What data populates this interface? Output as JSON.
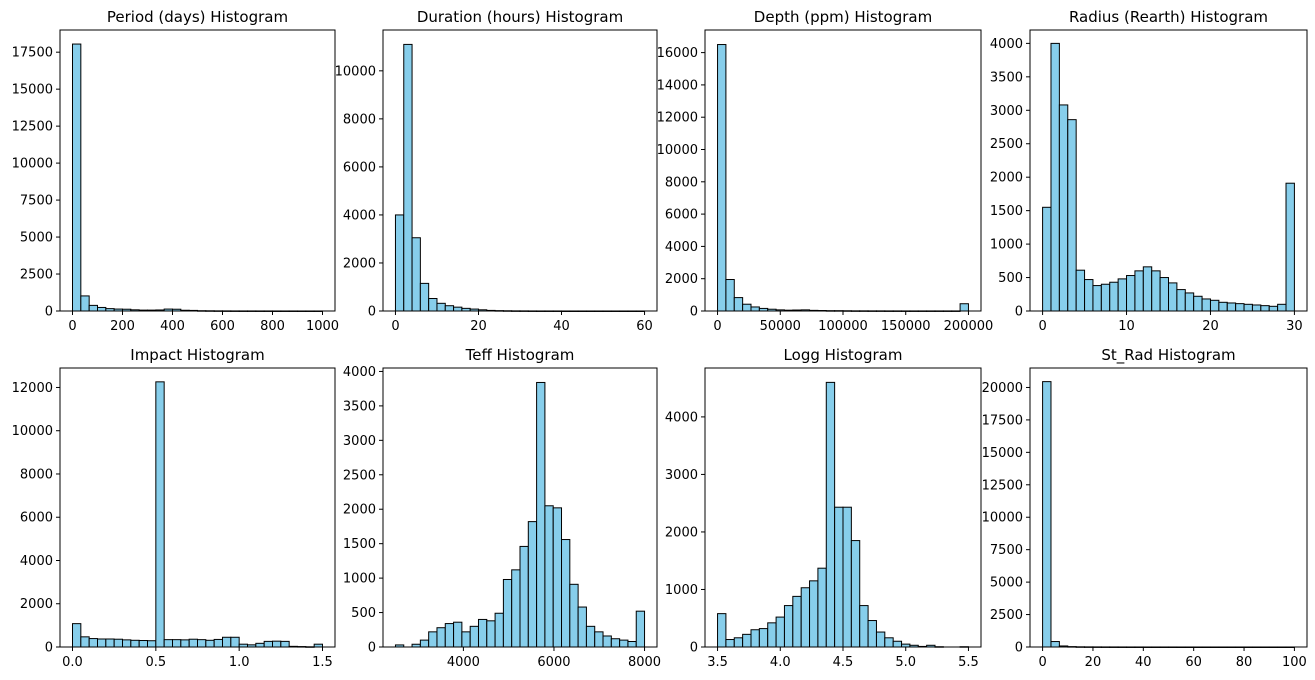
{
  "chart_data": [
    {
      "type": "bar",
      "title": "Period (days) Histogram",
      "xlabel": "",
      "ylabel": "",
      "xlim": [
        -50,
        1050
      ],
      "ylim": [
        0,
        19000
      ],
      "xticks": [
        0,
        200,
        400,
        600,
        800,
        1000
      ],
      "xtick_labels": [
        "0",
        "200",
        "400",
        "600",
        "800",
        "1000"
      ],
      "yticks": [
        0,
        2500,
        5000,
        7500,
        10000,
        12500,
        15000,
        17500
      ],
      "ytick_labels": [
        "0",
        "2500",
        "5000",
        "7500",
        "10000",
        "12500",
        "15000",
        "17500"
      ],
      "bin_edges": [
        0,
        33.33,
        66.67,
        100,
        133.33,
        166.67,
        200,
        233.33,
        266.67,
        300,
        333.33,
        366.67,
        400,
        433.33,
        466.67,
        500,
        533.33,
        566.67,
        600,
        633.33,
        666.67,
        700,
        733.33,
        766.67,
        800,
        833.33,
        866.67,
        900,
        933.33,
        966.67,
        1000
      ],
      "values": [
        18050,
        1020,
        380,
        240,
        160,
        130,
        120,
        80,
        60,
        60,
        70,
        130,
        120,
        50,
        40,
        20,
        15,
        10,
        8,
        6,
        5,
        5,
        4,
        4,
        3,
        3,
        3,
        2,
        2,
        2
      ]
    },
    {
      "type": "bar",
      "title": "Duration (hours) Histogram",
      "xlabel": "",
      "ylabel": "",
      "xlim": [
        -3,
        63
      ],
      "ylim": [
        0,
        11700
      ],
      "xticks": [
        0,
        20,
        40,
        60
      ],
      "xtick_labels": [
        "0",
        "20",
        "40",
        "60"
      ],
      "yticks": [
        0,
        2000,
        4000,
        6000,
        8000,
        10000
      ],
      "ytick_labels": [
        "0",
        "2000",
        "4000",
        "6000",
        "8000",
        "10000"
      ],
      "bin_edges": [
        0,
        2,
        4,
        6,
        8,
        10,
        12,
        14,
        16,
        18,
        20,
        22,
        24,
        26,
        28,
        30,
        32,
        34,
        36,
        38,
        40,
        42,
        44,
        46,
        48,
        50,
        52,
        54,
        56,
        58,
        60
      ],
      "values": [
        4000,
        11100,
        3050,
        1150,
        520,
        320,
        220,
        160,
        110,
        80,
        50,
        25,
        15,
        10,
        6,
        5,
        3,
        2,
        2,
        2,
        1,
        1,
        1,
        1,
        1,
        1,
        1,
        1,
        1,
        1
      ]
    },
    {
      "type": "bar",
      "title": "Depth (ppm) Histogram",
      "xlabel": "",
      "ylabel": "",
      "xlim": [
        -10000,
        210000
      ],
      "ylim": [
        0,
        17400
      ],
      "xticks": [
        0,
        50000,
        100000,
        150000,
        200000
      ],
      "xtick_labels": [
        "0",
        "50000",
        "100000",
        "150000",
        "200000"
      ],
      "yticks": [
        0,
        2000,
        4000,
        6000,
        8000,
        10000,
        12000,
        14000,
        16000
      ],
      "ytick_labels": [
        "0",
        "2000",
        "4000",
        "6000",
        "8000",
        "10000",
        "12000",
        "14000",
        "16000"
      ],
      "bin_edges": [
        0,
        6666.67,
        13333.33,
        20000,
        26666.67,
        33333.33,
        40000,
        46666.67,
        53333.33,
        60000,
        66666.67,
        73333.33,
        80000,
        86666.67,
        93333.33,
        100000,
        106666.67,
        113333.33,
        120000,
        126666.67,
        133333.33,
        140000,
        146666.67,
        153333.33,
        160000,
        166666.67,
        173333.33,
        180000,
        186666.67,
        193333.33,
        200000
      ],
      "values": [
        16500,
        1950,
        830,
        420,
        250,
        160,
        110,
        70,
        50,
        60,
        70,
        40,
        30,
        20,
        20,
        15,
        10,
        10,
        8,
        8,
        6,
        6,
        5,
        5,
        5,
        5,
        5,
        5,
        5,
        450
      ]
    },
    {
      "type": "bar",
      "title": "Radius (Rearth) Histogram",
      "xlabel": "",
      "ylabel": "",
      "xlim": [
        -1.5,
        31.5
      ],
      "ylim": [
        0,
        4200
      ],
      "xticks": [
        0,
        10,
        20,
        30
      ],
      "xtick_labels": [
        "0",
        "10",
        "20",
        "30"
      ],
      "yticks": [
        0,
        500,
        1000,
        1500,
        2000,
        2500,
        3000,
        3500,
        4000
      ],
      "ytick_labels": [
        "0",
        "500",
        "1000",
        "1500",
        "2000",
        "2500",
        "3000",
        "3500",
        "4000"
      ],
      "bin_edges": [
        0,
        1,
        2,
        3,
        4,
        5,
        6,
        7,
        8,
        9,
        10,
        11,
        12,
        13,
        14,
        15,
        16,
        17,
        18,
        19,
        20,
        21,
        22,
        23,
        24,
        25,
        26,
        27,
        28,
        29,
        30
      ],
      "values": [
        1550,
        4000,
        3080,
        2860,
        610,
        470,
        380,
        400,
        430,
        480,
        530,
        600,
        660,
        600,
        500,
        420,
        320,
        270,
        220,
        180,
        160,
        130,
        120,
        110,
        100,
        90,
        80,
        70,
        100,
        1910
      ]
    },
    {
      "type": "bar",
      "title": "Impact Histogram",
      "xlabel": "",
      "ylabel": "",
      "xlim": [
        -0.075,
        1.575
      ],
      "ylim": [
        0,
        12900
      ],
      "xticks": [
        0.0,
        0.5,
        1.0,
        1.5
      ],
      "xtick_labels": [
        "0.0",
        "0.5",
        "1.0",
        "1.5"
      ],
      "yticks": [
        0,
        2000,
        4000,
        6000,
        8000,
        10000,
        12000
      ],
      "ytick_labels": [
        "0",
        "2000",
        "4000",
        "6000",
        "8000",
        "10000",
        "12000"
      ],
      "bin_edges": [
        0,
        0.05,
        0.1,
        0.15,
        0.2,
        0.25,
        0.3,
        0.35,
        0.4,
        0.45,
        0.5,
        0.55,
        0.6,
        0.65,
        0.7,
        0.75,
        0.8,
        0.85,
        0.9,
        0.95,
        1.0,
        1.05,
        1.1,
        1.15,
        1.2,
        1.25,
        1.3,
        1.35,
        1.4,
        1.45,
        1.5
      ],
      "values": [
        1080,
        470,
        390,
        370,
        370,
        360,
        330,
        310,
        300,
        290,
        12260,
        340,
        340,
        330,
        360,
        340,
        310,
        350,
        450,
        450,
        130,
        100,
        170,
        260,
        270,
        260,
        30,
        20,
        10,
        130
      ]
    },
    {
      "type": "bar",
      "title": "Teff Histogram",
      "xlabel": "",
      "ylabel": "",
      "xlim": [
        2225,
        8275
      ],
      "ylim": [
        0,
        4050
      ],
      "xticks": [
        4000,
        6000,
        8000
      ],
      "xtick_labels": [
        "4000",
        "6000",
        "8000"
      ],
      "yticks": [
        0,
        500,
        1000,
        1500,
        2000,
        2500,
        3000,
        3500,
        4000
      ],
      "ytick_labels": [
        "0",
        "500",
        "1000",
        "1500",
        "2000",
        "2500",
        "3000",
        "3500",
        "4000"
      ],
      "bin_edges": [
        2500,
        2683.33,
        2866.67,
        3050,
        3233.33,
        3416.67,
        3600,
        3783.33,
        3966.67,
        4150,
        4333.33,
        4516.67,
        4700,
        4883.33,
        5066.67,
        5250,
        5433.33,
        5616.67,
        5800,
        5983.33,
        6166.67,
        6350,
        6533.33,
        6716.67,
        6900,
        7083.33,
        7266.67,
        7450,
        7633.33,
        7816.67,
        8000
      ],
      "values": [
        30,
        0,
        40,
        100,
        220,
        280,
        340,
        360,
        220,
        300,
        400,
        380,
        490,
        980,
        1120,
        1460,
        1820,
        3840,
        2050,
        2020,
        1560,
        910,
        580,
        300,
        220,
        160,
        120,
        100,
        80,
        520
      ]
    },
    {
      "type": "bar",
      "title": "Logg Histogram",
      "xlabel": "",
      "ylabel": "",
      "xlim": [
        3.4,
        5.6
      ],
      "ylim": [
        0,
        4850
      ],
      "xticks": [
        3.5,
        4.0,
        4.5,
        5.0,
        5.5
      ],
      "xtick_labels": [
        "3.5",
        "4.0",
        "4.5",
        "5.0",
        "5.5"
      ],
      "yticks": [
        0,
        1000,
        2000,
        3000,
        4000
      ],
      "ytick_labels": [
        "0",
        "1000",
        "2000",
        "3000",
        "4000"
      ],
      "bin_edges": [
        3.5,
        3.5667,
        3.6333,
        3.7,
        3.7667,
        3.8333,
        3.9,
        3.9667,
        4.0333,
        4.1,
        4.1667,
        4.2333,
        4.3,
        4.3667,
        4.4333,
        4.5,
        4.5667,
        4.6333,
        4.7,
        4.7667,
        4.8333,
        4.9,
        4.9667,
        5.0333,
        5.1,
        5.1667,
        5.2333,
        5.3,
        5.3667,
        5.4333,
        5.5
      ],
      "values": [
        580,
        130,
        160,
        220,
        300,
        320,
        420,
        520,
        720,
        880,
        1030,
        1150,
        1370,
        4600,
        2430,
        2430,
        1850,
        720,
        460,
        260,
        160,
        100,
        50,
        30,
        10,
        30,
        5,
        0,
        0,
        5
      ]
    },
    {
      "type": "bar",
      "title": "St_Rad Histogram",
      "xlabel": "",
      "ylabel": "",
      "xlim": [
        -5,
        105
      ],
      "ylim": [
        0,
        21500
      ],
      "xticks": [
        0,
        20,
        40,
        60,
        80,
        100
      ],
      "xtick_labels": [
        "0",
        "20",
        "40",
        "60",
        "80",
        "100"
      ],
      "yticks": [
        0,
        2500,
        5000,
        7500,
        10000,
        12500,
        15000,
        17500,
        20000
      ],
      "ytick_labels": [
        "0",
        "2500",
        "5000",
        "7500",
        "10000",
        "12500",
        "15000",
        "17500",
        "20000"
      ],
      "bin_edges": [
        0,
        3.333,
        6.667,
        10,
        13.333,
        16.667,
        20,
        23.333,
        26.667,
        30,
        33.333,
        36.667,
        40,
        43.333,
        46.667,
        50,
        53.333,
        56.667,
        60,
        63.333,
        66.667,
        70,
        73.333,
        76.667,
        80,
        83.333,
        86.667,
        90,
        93.333,
        96.667,
        100
      ],
      "values": [
        20450,
        420,
        80,
        30,
        15,
        10,
        8,
        6,
        5,
        4,
        3,
        3,
        2,
        2,
        2,
        2,
        1,
        1,
        1,
        1,
        1,
        1,
        1,
        1,
        1,
        1,
        1,
        1,
        1,
        1
      ]
    }
  ]
}
